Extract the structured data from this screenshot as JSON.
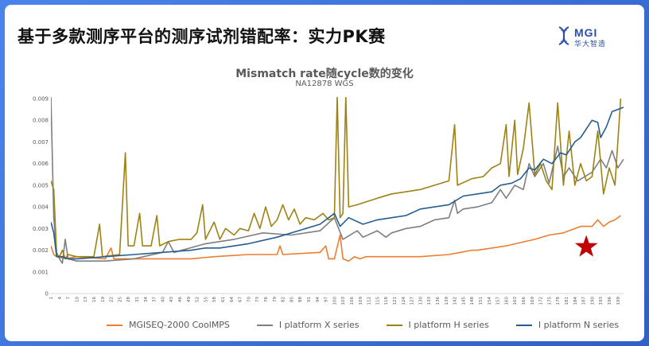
{
  "header": {
    "title": "基于多款测序平台的测序试剂错配率：实力PK赛",
    "logo_text": "MGI",
    "logo_sub": "华大智造"
  },
  "chart_data": {
    "type": "line",
    "title": "Mismatch rate随cycle数的变化",
    "subtitle": "NA12878 WGS",
    "xlabel": "",
    "ylabel": "",
    "ylim": [
      0,
      0.009
    ],
    "yticks": [
      "0",
      "0.001",
      "0.002",
      "0.003",
      "0.004",
      "0.005",
      "0.006",
      "0.007",
      "0.008",
      "0.009"
    ],
    "xlim": [
      1,
      201
    ],
    "xtick_start": 1,
    "xtick_step": 3,
    "grid": false,
    "legend_position": "bottom",
    "series": [
      {
        "name": "MGISEQ-2000 CoolMPS",
        "color": "#ed7d31",
        "points": [
          [
            1,
            0.0022
          ],
          [
            2,
            0.0018
          ],
          [
            3,
            0.0017
          ],
          [
            6,
            0.0016
          ],
          [
            10,
            0.0017
          ],
          [
            20,
            0.0016
          ],
          [
            22,
            0.0021
          ],
          [
            23,
            0.0016
          ],
          [
            40,
            0.0016
          ],
          [
            50,
            0.0016
          ],
          [
            58,
            0.0017
          ],
          [
            70,
            0.0018
          ],
          [
            80,
            0.0018
          ],
          [
            81,
            0.0022
          ],
          [
            82,
            0.0018
          ],
          [
            95,
            0.0019
          ],
          [
            97,
            0.0022
          ],
          [
            98,
            0.0016
          ],
          [
            100,
            0.0016
          ],
          [
            102,
            0.0027
          ],
          [
            103,
            0.0016
          ],
          [
            105,
            0.0015
          ],
          [
            107,
            0.0017
          ],
          [
            109,
            0.0016
          ],
          [
            111,
            0.0017
          ],
          [
            120,
            0.0017
          ],
          [
            130,
            0.0017
          ],
          [
            140,
            0.0018
          ],
          [
            144,
            0.0019
          ],
          [
            148,
            0.002
          ],
          [
            150,
            0.002
          ],
          [
            160,
            0.0022
          ],
          [
            170,
            0.0025
          ],
          [
            175,
            0.0027
          ],
          [
            180,
            0.0028
          ],
          [
            186,
            0.0031
          ],
          [
            190,
            0.0031
          ],
          [
            192,
            0.0034
          ],
          [
            194,
            0.0031
          ],
          [
            196,
            0.0033
          ],
          [
            198,
            0.0034
          ],
          [
            200,
            0.0036
          ]
        ]
      },
      {
        "name": "I platform X series",
        "color": "#7f7f7f",
        "points": [
          [
            1,
            0.0091
          ],
          [
            2,
            0.0035
          ],
          [
            3,
            0.0019
          ],
          [
            4,
            0.0016
          ],
          [
            5,
            0.0014
          ],
          [
            6,
            0.0025
          ],
          [
            7,
            0.0016
          ],
          [
            10,
            0.0015
          ],
          [
            20,
            0.0015
          ],
          [
            30,
            0.0016
          ],
          [
            40,
            0.0019
          ],
          [
            42,
            0.0024
          ],
          [
            44,
            0.0019
          ],
          [
            55,
            0.0023
          ],
          [
            65,
            0.0025
          ],
          [
            75,
            0.0028
          ],
          [
            85,
            0.0027
          ],
          [
            95,
            0.0029
          ],
          [
            100,
            0.0035
          ],
          [
            103,
            0.0025
          ],
          [
            108,
            0.0029
          ],
          [
            110,
            0.0026
          ],
          [
            115,
            0.0029
          ],
          [
            118,
            0.0026
          ],
          [
            120,
            0.0028
          ],
          [
            125,
            0.003
          ],
          [
            130,
            0.0031
          ],
          [
            135,
            0.0034
          ],
          [
            140,
            0.0035
          ],
          [
            142,
            0.0043
          ],
          [
            143,
            0.0037
          ],
          [
            145,
            0.0039
          ],
          [
            150,
            0.004
          ],
          [
            155,
            0.0042
          ],
          [
            158,
            0.0048
          ],
          [
            160,
            0.0044
          ],
          [
            163,
            0.005
          ],
          [
            166,
            0.0048
          ],
          [
            168,
            0.006
          ],
          [
            170,
            0.0054
          ],
          [
            173,
            0.006
          ],
          [
            175,
            0.0051
          ],
          [
            178,
            0.0068
          ],
          [
            180,
            0.0054
          ],
          [
            182,
            0.0058
          ],
          [
            185,
            0.0052
          ],
          [
            190,
            0.0056
          ],
          [
            193,
            0.0062
          ],
          [
            195,
            0.0058
          ],
          [
            197,
            0.0066
          ],
          [
            199,
            0.0058
          ],
          [
            201,
            0.0062
          ]
        ]
      },
      {
        "name": "I platform H series",
        "color": "#9e8213",
        "points": [
          [
            1,
            0.0052
          ],
          [
            2,
            0.0048
          ],
          [
            3,
            0.0018
          ],
          [
            4,
            0.0017
          ],
          [
            5,
            0.002
          ],
          [
            6,
            0.0016
          ],
          [
            7,
            0.0018
          ],
          [
            10,
            0.0017
          ],
          [
            16,
            0.0017
          ],
          [
            18,
            0.0032
          ],
          [
            19,
            0.0017
          ],
          [
            25,
            0.0018
          ],
          [
            27,
            0.0065
          ],
          [
            28,
            0.0022
          ],
          [
            30,
            0.0022
          ],
          [
            32,
            0.0037
          ],
          [
            33,
            0.0022
          ],
          [
            36,
            0.0022
          ],
          [
            38,
            0.0036
          ],
          [
            39,
            0.0022
          ],
          [
            42,
            0.0024
          ],
          [
            46,
            0.0025
          ],
          [
            50,
            0.0025
          ],
          [
            52,
            0.0028
          ],
          [
            54,
            0.0041
          ],
          [
            55,
            0.0025
          ],
          [
            58,
            0.0033
          ],
          [
            60,
            0.0025
          ],
          [
            62,
            0.003
          ],
          [
            65,
            0.0027
          ],
          [
            67,
            0.003
          ],
          [
            70,
            0.0029
          ],
          [
            72,
            0.0037
          ],
          [
            74,
            0.003
          ],
          [
            76,
            0.004
          ],
          [
            78,
            0.0031
          ],
          [
            80,
            0.0034
          ],
          [
            82,
            0.0041
          ],
          [
            84,
            0.0034
          ],
          [
            86,
            0.0039
          ],
          [
            88,
            0.0032
          ],
          [
            90,
            0.0035
          ],
          [
            93,
            0.0034
          ],
          [
            96,
            0.0037
          ],
          [
            98,
            0.0034
          ],
          [
            100,
            0.0035
          ],
          [
            101,
            0.0091
          ],
          [
            102,
            0.0035
          ],
          [
            103,
            0.0037
          ],
          [
            104,
            0.0091
          ],
          [
            105,
            0.004
          ],
          [
            108,
            0.0041
          ],
          [
            115,
            0.0044
          ],
          [
            120,
            0.0046
          ],
          [
            130,
            0.0048
          ],
          [
            135,
            0.005
          ],
          [
            140,
            0.0052
          ],
          [
            142,
            0.0078
          ],
          [
            143,
            0.005
          ],
          [
            148,
            0.0053
          ],
          [
            152,
            0.0054
          ],
          [
            155,
            0.0058
          ],
          [
            158,
            0.006
          ],
          [
            160,
            0.0078
          ],
          [
            161,
            0.0054
          ],
          [
            163,
            0.008
          ],
          [
            164,
            0.0055
          ],
          [
            166,
            0.0067
          ],
          [
            168,
            0.0088
          ],
          [
            170,
            0.0055
          ],
          [
            172,
            0.006
          ],
          [
            174,
            0.0052
          ],
          [
            176,
            0.0048
          ],
          [
            178,
            0.0088
          ],
          [
            180,
            0.005
          ],
          [
            182,
            0.0075
          ],
          [
            184,
            0.005
          ],
          [
            186,
            0.006
          ],
          [
            188,
            0.0052
          ],
          [
            190,
            0.0054
          ],
          [
            192,
            0.0075
          ],
          [
            194,
            0.0046
          ],
          [
            196,
            0.0058
          ],
          [
            198,
            0.005
          ],
          [
            200,
            0.009
          ]
        ]
      },
      {
        "name": "I platform N series",
        "color": "#255e91",
        "points": [
          [
            1,
            0.0033
          ],
          [
            2,
            0.0028
          ],
          [
            3,
            0.0017
          ],
          [
            5,
            0.0017
          ],
          [
            7,
            0.0016
          ],
          [
            10,
            0.0016
          ],
          [
            20,
            0.0017
          ],
          [
            30,
            0.0018
          ],
          [
            40,
            0.0019
          ],
          [
            50,
            0.002
          ],
          [
            55,
            0.0021
          ],
          [
            60,
            0.0021
          ],
          [
            70,
            0.0023
          ],
          [
            80,
            0.0026
          ],
          [
            90,
            0.003
          ],
          [
            95,
            0.0032
          ],
          [
            100,
            0.0037
          ],
          [
            102,
            0.0031
          ],
          [
            105,
            0.0035
          ],
          [
            110,
            0.0032
          ],
          [
            115,
            0.0034
          ],
          [
            120,
            0.0035
          ],
          [
            125,
            0.0036
          ],
          [
            130,
            0.0039
          ],
          [
            135,
            0.004
          ],
          [
            140,
            0.0041
          ],
          [
            145,
            0.0045
          ],
          [
            150,
            0.0046
          ],
          [
            155,
            0.0047
          ],
          [
            158,
            0.005
          ],
          [
            162,
            0.0051
          ],
          [
            165,
            0.0053
          ],
          [
            168,
            0.0058
          ],
          [
            170,
            0.0057
          ],
          [
            173,
            0.0062
          ],
          [
            176,
            0.006
          ],
          [
            179,
            0.0065
          ],
          [
            181,
            0.0064
          ],
          [
            184,
            0.007
          ],
          [
            186,
            0.0072
          ],
          [
            188,
            0.0076
          ],
          [
            190,
            0.008
          ],
          [
            192,
            0.0079
          ],
          [
            193,
            0.0072
          ],
          [
            195,
            0.0077
          ],
          [
            197,
            0.0084
          ],
          [
            199,
            0.0085
          ],
          [
            201,
            0.0086
          ]
        ]
      }
    ],
    "annotation": {
      "symbol": "star",
      "color": "#c00000",
      "x": 188,
      "y": 0.00215
    }
  }
}
